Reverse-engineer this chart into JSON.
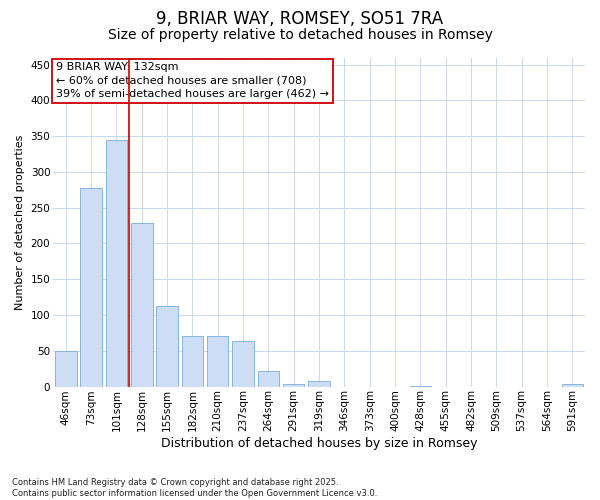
{
  "title": "9, BRIAR WAY, ROMSEY, SO51 7RA",
  "subtitle": "Size of property relative to detached houses in Romsey",
  "xlabel": "Distribution of detached houses by size in Romsey",
  "ylabel": "Number of detached properties",
  "categories": [
    "46sqm",
    "73sqm",
    "101sqm",
    "128sqm",
    "155sqm",
    "182sqm",
    "210sqm",
    "237sqm",
    "264sqm",
    "291sqm",
    "319sqm",
    "346sqm",
    "373sqm",
    "400sqm",
    "428sqm",
    "455sqm",
    "482sqm",
    "509sqm",
    "537sqm",
    "564sqm",
    "591sqm"
  ],
  "values": [
    50,
    278,
    345,
    228,
    112,
    70,
    70,
    63,
    22,
    4,
    8,
    0,
    0,
    0,
    1,
    0,
    0,
    0,
    0,
    0,
    3
  ],
  "bar_color": "#ccddf5",
  "bar_edge_color": "#7aadd4",
  "vline_color": "#cc0000",
  "annotation_line1": "9 BRIAR WAY: 132sqm",
  "annotation_line2": "← 60% of detached houses are smaller (708)",
  "annotation_line3": "39% of semi-detached houses are larger (462) →",
  "annotation_box_color": "#ffffff",
  "annotation_box_edge": "#cc0000",
  "ylim": [
    0,
    460
  ],
  "yticks": [
    0,
    50,
    100,
    150,
    200,
    250,
    300,
    350,
    400,
    450
  ],
  "bg_color": "#ffffff",
  "grid_color": "#c5d8ee",
  "footer": "Contains HM Land Registry data © Crown copyright and database right 2025.\nContains public sector information licensed under the Open Government Licence v3.0.",
  "title_fontsize": 12,
  "subtitle_fontsize": 10,
  "ylabel_fontsize": 8,
  "xlabel_fontsize": 9,
  "tick_fontsize": 7.5,
  "footer_fontsize": 6,
  "annot_fontsize": 8
}
